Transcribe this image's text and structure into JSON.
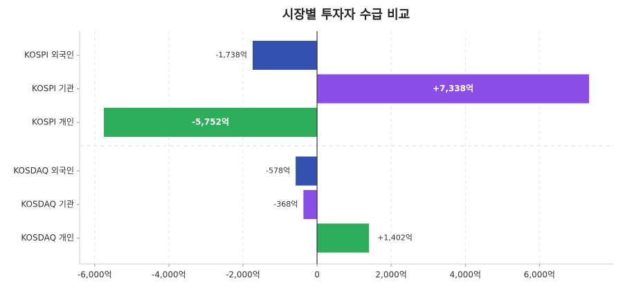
{
  "chart_data": {
    "type": "barh",
    "title": "시장별 투자자 수급 비교",
    "categories": [
      "KOSPI 외국인",
      "KOSPI 기관",
      "KOSPI 개인",
      "KOSDAQ 외국인",
      "KOSDAQ 기관",
      "KOSDAQ 개인"
    ],
    "values": [
      -1738,
      7338,
      -5752,
      -578,
      -368,
      1402
    ],
    "value_labels": [
      "-1,738억",
      "+7,338억",
      "-5,752억",
      "-578억",
      "-368억",
      "+1,402억"
    ],
    "colors": [
      "#3451b2",
      "#8a4de8",
      "#2ead5a",
      "#3451b2",
      "#8a4de8",
      "#2ead5a"
    ],
    "xlim": [
      -6407,
      7993
    ],
    "xticks": [
      {
        "value": -6000,
        "label": "-6,000억"
      },
      {
        "value": -4000,
        "label": "-4,000억"
      },
      {
        "value": -2000,
        "label": "-2,000억"
      },
      0,
      {
        "value": 2000,
        "label": "2,000억"
      },
      {
        "value": 4000,
        "label": "4,000억"
      },
      {
        "value": 6000,
        "label": "6,000억"
      }
    ],
    "grid": true
  }
}
